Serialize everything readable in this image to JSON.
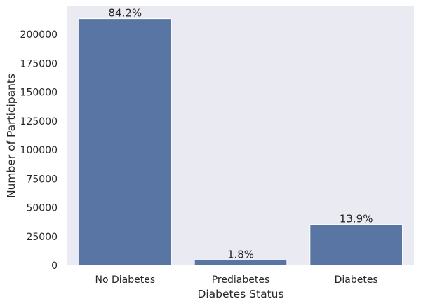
{
  "chart_data": {
    "type": "bar",
    "title": "",
    "xlabel": "Diabetes Status",
    "ylabel": "Number of Participants",
    "categories": [
      "No Diabetes",
      "Prediabetes",
      "Diabetes"
    ],
    "values": [
      213703,
      4631,
      35346
    ],
    "data_labels": [
      "84.2%",
      "1.8%",
      "13.9%"
    ],
    "ylim": [
      0,
      224387
    ],
    "yticks": [
      0,
      25000,
      50000,
      75000,
      100000,
      125000,
      150000,
      175000,
      200000
    ],
    "ytick_labels": [
      "0",
      "25000",
      "50000",
      "75000",
      "100000",
      "125000",
      "150000",
      "175000",
      "200000"
    ],
    "grid": false,
    "colors": {
      "plot_background": "#eaeaf2",
      "bar": "#5975a4",
      "bar_edge": "#ffffff",
      "text": "#262626"
    }
  }
}
